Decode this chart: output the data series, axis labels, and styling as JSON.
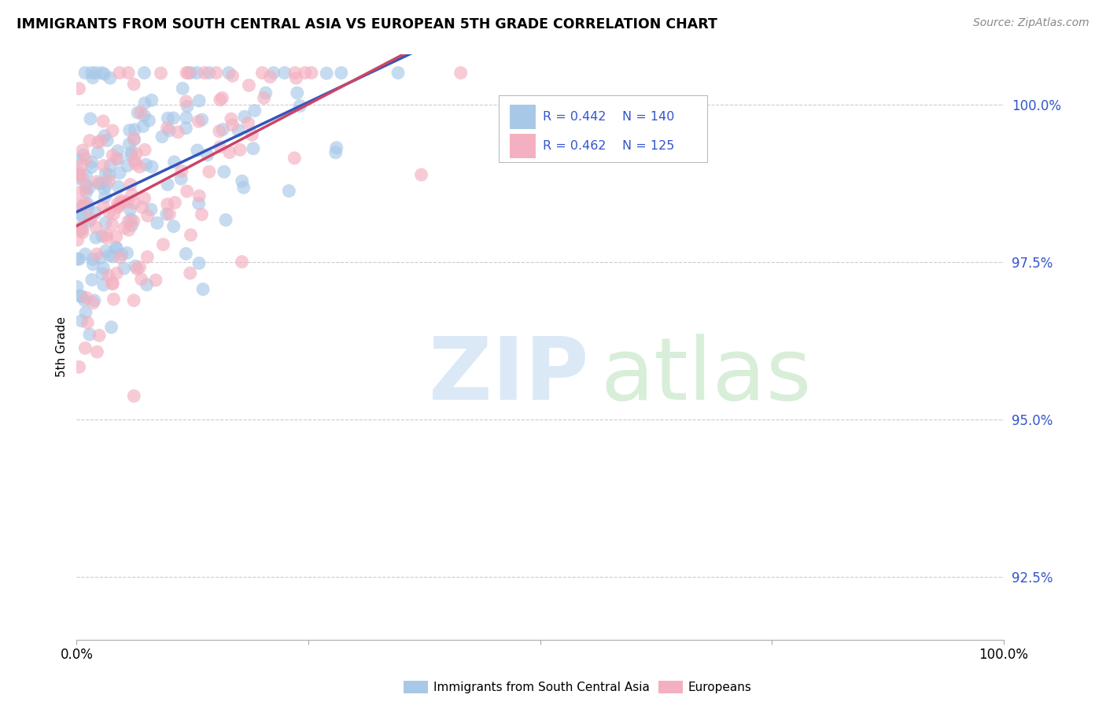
{
  "title": "IMMIGRANTS FROM SOUTH CENTRAL ASIA VS EUROPEAN 5TH GRADE CORRELATION CHART",
  "source": "Source: ZipAtlas.com",
  "ylabel": "5th Grade",
  "yticks": [
    92.5,
    95.0,
    97.5,
    100.0
  ],
  "ytick_labels": [
    "92.5%",
    "95.0%",
    "97.5%",
    "100.0%"
  ],
  "xlim": [
    0.0,
    1.0
  ],
  "ylim": [
    91.5,
    100.8
  ],
  "blue_R": 0.442,
  "blue_N": 140,
  "pink_R": 0.462,
  "pink_N": 125,
  "blue_color": "#a8c8e8",
  "pink_color": "#f4b0c0",
  "trend_blue": "#3355bb",
  "trend_pink": "#cc4466",
  "legend_text_color": "#3355cc",
  "background_color": "#ffffff",
  "seed": 42
}
